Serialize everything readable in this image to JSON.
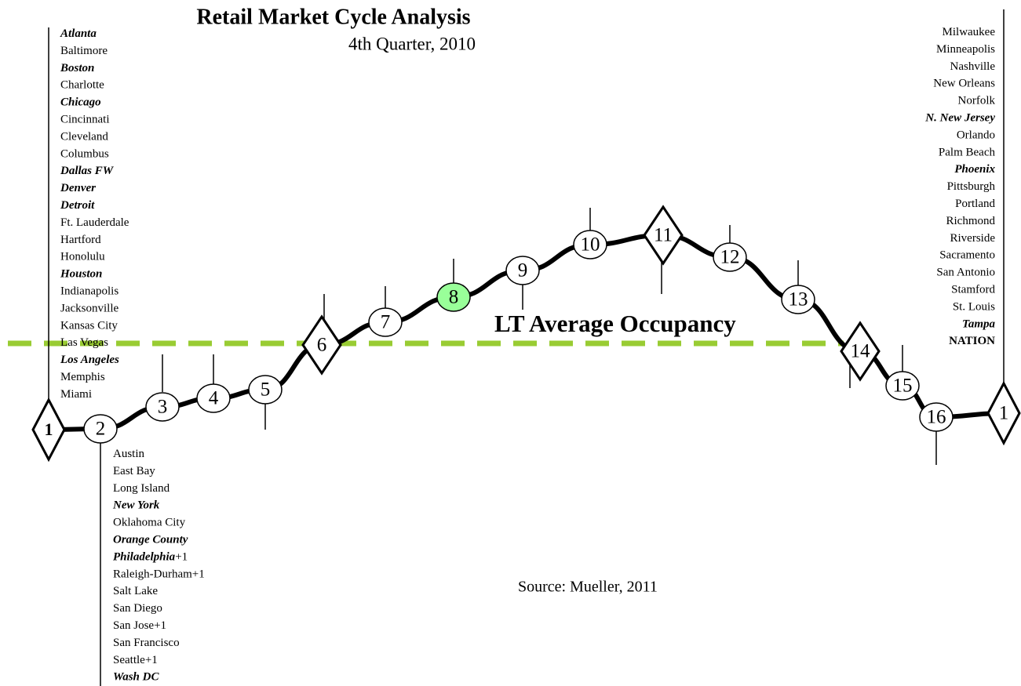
{
  "title": "Retail Market Cycle Analysis",
  "subtitle": "4th Quarter, 2010",
  "average_label": "LT Average Occupancy",
  "average_line_color": "#99cc33",
  "source": "Source: Mueller, 2011",
  "phases": [
    {
      "label": "1",
      "shape": "diamond",
      "style": "bold"
    },
    {
      "label": "2",
      "shape": "circle"
    },
    {
      "label": "3",
      "shape": "circle"
    },
    {
      "label": "4",
      "shape": "circle"
    },
    {
      "label": "5",
      "shape": "circle"
    },
    {
      "label": "6",
      "shape": "diamond"
    },
    {
      "label": "7",
      "shape": "circle"
    },
    {
      "label": "8",
      "shape": "circle",
      "fill": "#99ff99"
    },
    {
      "label": "9",
      "shape": "circle"
    },
    {
      "label": "10",
      "shape": "circle"
    },
    {
      "label": "11",
      "shape": "diamond"
    },
    {
      "label": "12",
      "shape": "circle"
    },
    {
      "label": "13",
      "shape": "circle"
    },
    {
      "label": "14",
      "shape": "diamond"
    },
    {
      "label": "15",
      "shape": "circle"
    },
    {
      "label": "16",
      "shape": "circle"
    },
    {
      "label": "1",
      "shape": "diamond"
    }
  ],
  "lists": {
    "phase_1": [
      {
        "text": "Atlanta",
        "style": "bold-italic"
      },
      {
        "text": "Baltimore"
      },
      {
        "text": "Boston",
        "style": "bold-italic"
      },
      {
        "text": "Charlotte"
      },
      {
        "text": "Chicago",
        "style": "bold-italic"
      },
      {
        "text": "Cincinnati"
      },
      {
        "text": "Cleveland"
      },
      {
        "text": "Columbus"
      },
      {
        "text": "Dallas FW",
        "style": "bold-italic"
      },
      {
        "text": "Denver",
        "style": "bold-italic"
      },
      {
        "text": "Detroit",
        "style": "bold-italic"
      },
      {
        "text": "Ft. Lauderdale"
      },
      {
        "text": "Hartford"
      },
      {
        "text": "Honolulu"
      },
      {
        "text": "Houston",
        "style": "bold-italic"
      },
      {
        "text": "Indianapolis"
      },
      {
        "text": "Jacksonville"
      },
      {
        "text": "Kansas City"
      },
      {
        "text": "Las Vegas"
      },
      {
        "text": "Los Angeles",
        "style": "bold-italic"
      },
      {
        "text": "Memphis"
      },
      {
        "text": "Miami"
      }
    ],
    "phase_2": [
      {
        "text": "Austin"
      },
      {
        "text": "East Bay"
      },
      {
        "text": "Long Island"
      },
      {
        "text": "New York",
        "style": "bold-italic"
      },
      {
        "text": "Oklahoma City"
      },
      {
        "text": "Orange County",
        "style": "bold-italic"
      },
      {
        "text": "Philadelphia",
        "style": "bold-italic",
        "suffix": "+1"
      },
      {
        "text": "Raleigh-Durham+1"
      },
      {
        "text": "Salt Lake"
      },
      {
        "text": "San Diego"
      },
      {
        "text": "San Jose+1"
      },
      {
        "text": "San Francisco"
      },
      {
        "text": "Seattle+1"
      },
      {
        "text": "Wash DC",
        "style": "bold-italic"
      }
    ],
    "phase_1_right": [
      {
        "text": "Milwaukee"
      },
      {
        "text": "Minneapolis"
      },
      {
        "text": "Nashville"
      },
      {
        "text": "New Orleans"
      },
      {
        "text": "Norfolk"
      },
      {
        "text": "N. New Jersey",
        "style": "bold-italic"
      },
      {
        "text": "Orlando"
      },
      {
        "text": "Palm Beach"
      },
      {
        "text": "Phoenix",
        "style": "bold-italic"
      },
      {
        "text": "Pittsburgh"
      },
      {
        "text": "Portland"
      },
      {
        "text": "Richmond"
      },
      {
        "text": "Riverside"
      },
      {
        "text": "Sacramento"
      },
      {
        "text": "San Antonio"
      },
      {
        "text": "Stamford"
      },
      {
        "text": "St. Louis"
      },
      {
        "text": "Tampa",
        "style": "bold-italic"
      },
      {
        "text": "NATION",
        "style": "bold"
      }
    ]
  }
}
